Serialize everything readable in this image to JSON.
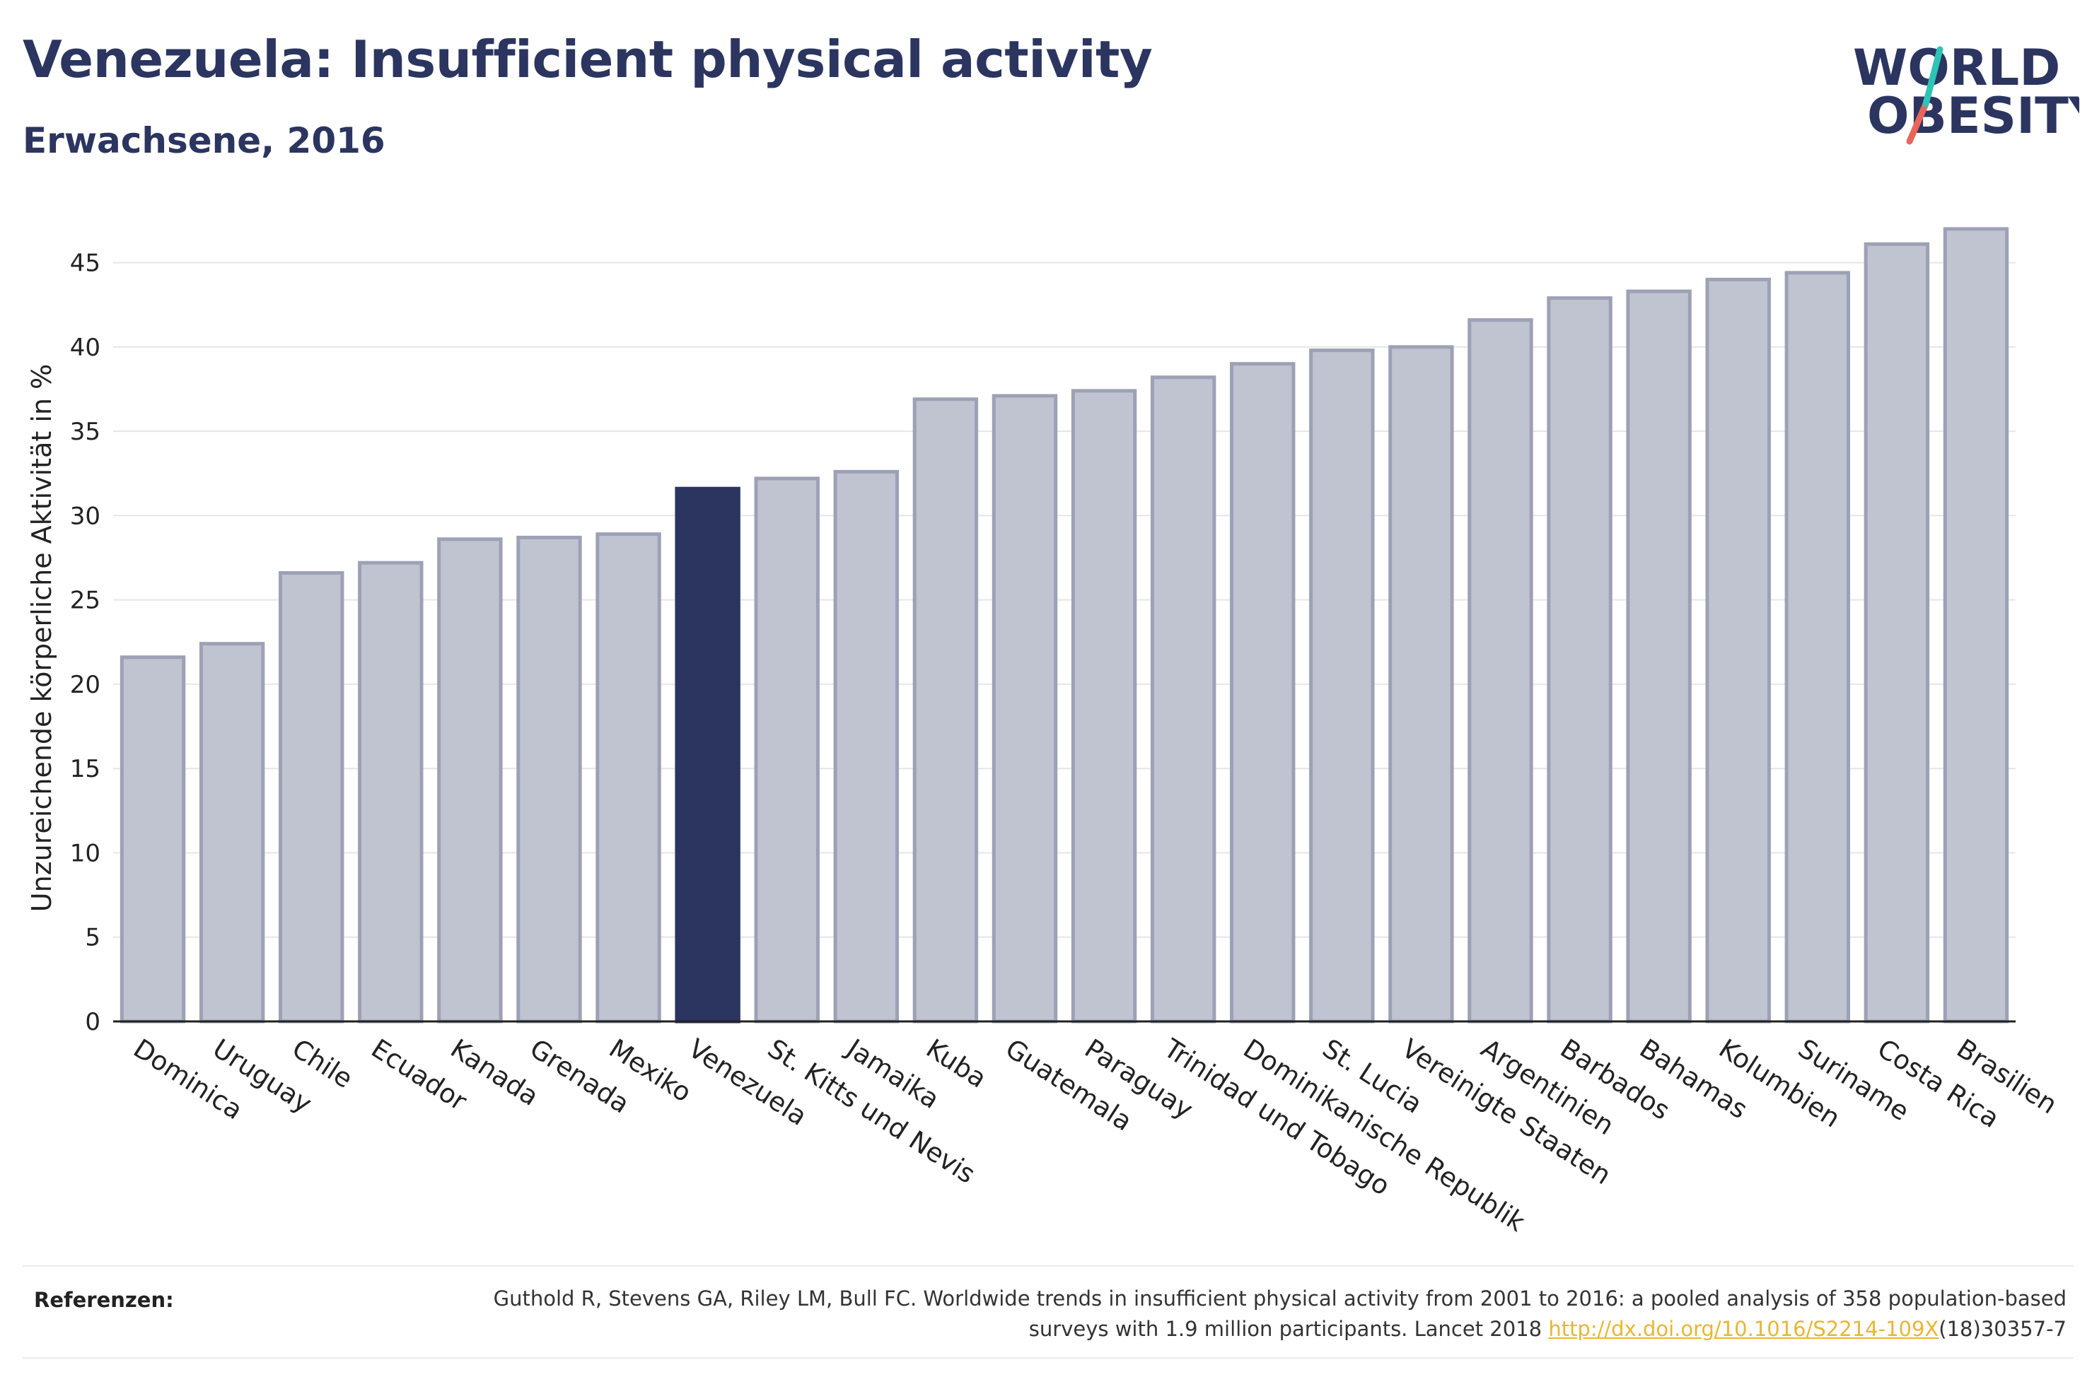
{
  "header": {
    "title": "Venezuela: Insufficient physical activity",
    "subtitle": "Erwachsene, 2016"
  },
  "logo": {
    "line1": "WORLD",
    "line2": "OBESITY",
    "colors": {
      "text": "#2b3560",
      "slash_top": "#2ec4b6",
      "slash_bottom": "#e8655a"
    }
  },
  "chart_data": {
    "type": "bar",
    "title": "",
    "xlabel": "",
    "ylabel": "Unzureichende körperliche Aktivität in %",
    "ylim": [
      0,
      48
    ],
    "yticks": [
      0,
      5,
      10,
      15,
      20,
      25,
      30,
      35,
      40,
      45
    ],
    "grid": "horizontal",
    "legend": "none",
    "highlight": "Venezuela",
    "colors": {
      "bar": "#c0c3d0",
      "bar_edge": "#9da1b6",
      "highlight": "#2b3560"
    },
    "categories": [
      "Dominica",
      "Uruguay",
      "Chile",
      "Ecuador",
      "Kanada",
      "Grenada",
      "Mexiko",
      "Venezuela",
      "St. Kitts und Nevis",
      "Jamaika",
      "Kuba",
      "Guatemala",
      "Paraguay",
      "Trinidad und Tobago",
      "Dominikanische Republik",
      "St. Lucia",
      "Vereinigte Staaten",
      "Argentinien",
      "Barbados",
      "Bahamas",
      "Kolumbien",
      "Suriname",
      "Costa Rica",
      "Brasilien"
    ],
    "values": [
      21.6,
      22.4,
      26.6,
      27.2,
      28.6,
      28.7,
      28.9,
      31.6,
      32.2,
      32.6,
      36.9,
      37.1,
      37.4,
      38.2,
      39.0,
      39.8,
      40.0,
      41.6,
      42.9,
      43.3,
      44.0,
      44.4,
      46.1,
      47.0
    ]
  },
  "references": {
    "label": "Referenzen:",
    "text_before": "Guthold R, Stevens GA, Riley LM, Bull FC. Worldwide trends in insufficient physical activity from 2001 to 2016: a pooled analysis of 358 population-based surveys with 1.9 million participants. Lancet 2018 ",
    "link": "http://dx.doi.org/10.1016/S2214-109X",
    "text_after": "(18)30357-7"
  }
}
